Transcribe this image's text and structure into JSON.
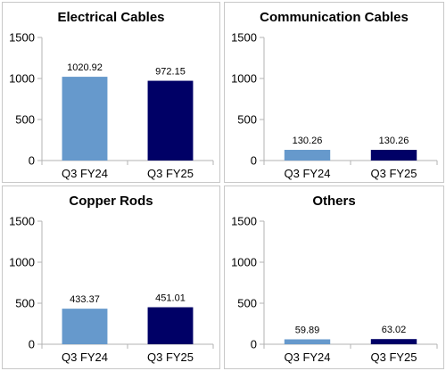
{
  "colors": {
    "q3fy24": "#6699cc",
    "q3fy25": "#000066",
    "panel_border": "#c8c8c8",
    "axis": "#b3b3b3",
    "background": "#ffffff"
  },
  "chart_data": [
    {
      "type": "bar",
      "title": "Electrical Cables",
      "categories": [
        "Q3 FY24",
        "Q3 FY25"
      ],
      "values": [
        1020.92,
        972.15
      ],
      "data_labels": [
        "1020.92",
        "972.15"
      ],
      "ylim": [
        0,
        1500
      ],
      "yticks": [
        "0",
        "500",
        "1000",
        "1500"
      ],
      "grid": false,
      "legend": "none"
    },
    {
      "type": "bar",
      "title": "Communication Cables",
      "categories": [
        "Q3 FY24",
        "Q3 FY25"
      ],
      "values": [
        130.26,
        130.26
      ],
      "data_labels": [
        "130.26",
        "130.26"
      ],
      "ylim": [
        0,
        1500
      ],
      "yticks": [
        "0",
        "500",
        "1000",
        "1500"
      ],
      "grid": false,
      "legend": "none"
    },
    {
      "type": "bar",
      "title": "Copper Rods",
      "categories": [
        "Q3 FY24",
        "Q3 FY25"
      ],
      "values": [
        433.37,
        451.01
      ],
      "data_labels": [
        "433.37",
        "451.01"
      ],
      "ylim": [
        0,
        1500
      ],
      "yticks": [
        "0",
        "500",
        "1000",
        "1500"
      ],
      "grid": false,
      "legend": "none"
    },
    {
      "type": "bar",
      "title": "Others",
      "categories": [
        "Q3 FY24",
        "Q3 FY25"
      ],
      "values": [
        59.89,
        63.02
      ],
      "data_labels": [
        "59.89",
        "63.02"
      ],
      "ylim": [
        0,
        1500
      ],
      "yticks": [
        "0",
        "500",
        "1000",
        "1500"
      ],
      "grid": false,
      "legend": "none"
    }
  ]
}
